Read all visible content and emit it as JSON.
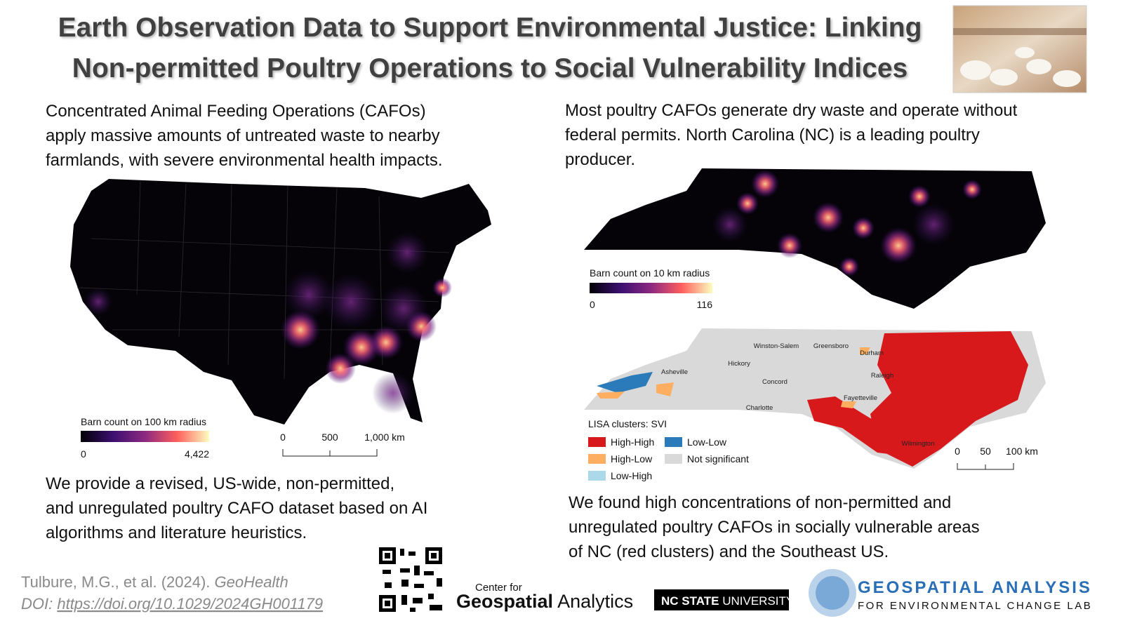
{
  "header": {
    "title_lines": [
      "Earth Observation Data to Support Environmental Justice: Linking",
      "Non-permitted Poultry Operations to Social Vulnerability Indices"
    ]
  },
  "left": {
    "intro_lines": [
      "Concentrated Animal Feeding Operations (CAFOs)",
      "apply massive amounts of untreated waste to nearby",
      "farmlands, with severe environmental health impacts."
    ],
    "us_map": {
      "legend_title": "Barn count on 100 km radius",
      "legend_min": "0",
      "legend_max": "4,422",
      "scale_labels": [
        "0",
        "500",
        "1,000 km"
      ]
    },
    "conclusion_lines": [
      "We provide a revised, US-wide, non-permitted,",
      "and unregulated poultry CAFO dataset based on AI",
      "algorithms and literature heuristics."
    ]
  },
  "right": {
    "intro_lines": [
      "Most poultry CAFOs generate dry waste and operate without",
      "federal permits. North Carolina (NC) is a leading poultry",
      "producer."
    ],
    "nc_map": {
      "legend_title": "Barn count on 10 km radius",
      "legend_min": "0",
      "legend_max": "116"
    },
    "lisa_map": {
      "cities": [
        "Winston-Salem",
        "Greensboro",
        "Durham",
        "Hickory",
        "Raleigh",
        "Asheville",
        "Concord",
        "Charlotte",
        "Fayetteville",
        "Wilmington"
      ],
      "legend_title": "LISA clusters: SVI",
      "legend_items": [
        "High-High",
        "Low-Low",
        "High-Low",
        "Not significant",
        "Low-High"
      ],
      "scale_labels": [
        "0",
        "50",
        "100 km"
      ]
    },
    "conclusion_lines": [
      "We found high concentrations of non-permitted and",
      "unregulated poultry CAFOs in socially vulnerable areas",
      "of NC (red clusters) and the Southeast US."
    ]
  },
  "footer": {
    "citation": "Tulbure, M.G., et al. (2024). ",
    "journal": "GeoHealth",
    "doi_prefix": "DOI: ",
    "doi_link": "https://doi.org/10.1029/2024GH001179",
    "logo_center_small": "Center for",
    "logo_center_bold": "Geospatial",
    "logo_center_light": "Analytics",
    "logo_ncstate_bold": "NC STATE",
    "logo_ncstate_light": "UNIVERSITY",
    "logo_lab_line1": "GEOSPATIAL ANALYSIS",
    "logo_lab_line2": "FOR ENVIRONMENTAL CHANGE LAB"
  }
}
